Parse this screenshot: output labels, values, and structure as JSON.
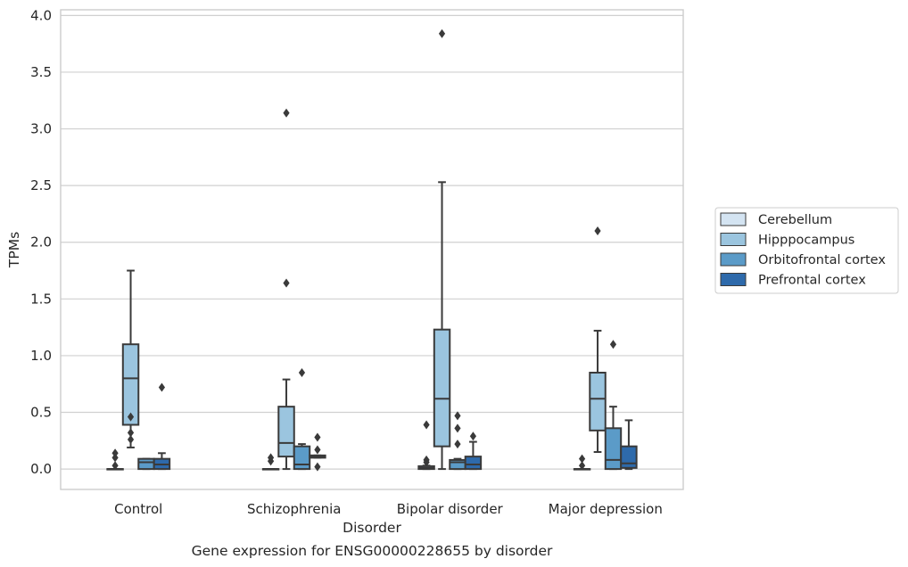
{
  "chart_data": {
    "type": "boxplot",
    "title": "",
    "caption": "Gene expression for ENSG00000228655 by disorder",
    "xlabel": "Disorder",
    "ylabel": "TPMs",
    "ylim": [
      -0.18,
      4.05
    ],
    "yticks": [
      "0.0",
      "0.5",
      "1.0",
      "1.5",
      "2.0",
      "2.5",
      "3.0",
      "3.5",
      "4.0"
    ],
    "ytick_values": [
      0,
      0.5,
      1.0,
      1.5,
      2.0,
      2.5,
      3.0,
      3.5,
      4.0
    ],
    "grid": "horizontal",
    "legend_position": "right",
    "categories": [
      "Control",
      "Schizophrenia",
      "Bipolar disorder",
      "Major depression"
    ],
    "series": [
      {
        "name": "Cerebellum",
        "color": "#d4e4f2",
        "boxes": [
          {
            "whisker_low": 0.0,
            "q1": 0.0,
            "median": 0.0,
            "q3": 0.0,
            "whisker_high": 0.0,
            "outliers": [
              0.03,
              0.1,
              0.14
            ]
          },
          {
            "whisker_low": 0.0,
            "q1": 0.0,
            "median": 0.0,
            "q3": 0.0,
            "whisker_high": 0.0,
            "outliers": [
              0.07,
              0.1
            ]
          },
          {
            "whisker_low": 0.0,
            "q1": 0.0,
            "median": 0.01,
            "q3": 0.025,
            "whisker_high": 0.03,
            "outliers": [
              0.06,
              0.08,
              0.39
            ]
          },
          {
            "whisker_low": 0.0,
            "q1": 0.0,
            "median": 0.0,
            "q3": 0.0,
            "whisker_high": 0.0,
            "outliers": [
              0.03,
              0.09
            ]
          }
        ]
      },
      {
        "name": "Hipppocampus",
        "color": "#9bc5df",
        "boxes": [
          {
            "whisker_low": 0.19,
            "q1": 0.39,
            "median": 0.8,
            "q3": 1.1,
            "whisker_high": 1.75,
            "outliers": [
              0.26,
              0.32,
              0.46
            ]
          },
          {
            "whisker_low": 0.0,
            "q1": 0.11,
            "median": 0.23,
            "q3": 0.55,
            "whisker_high": 0.79,
            "outliers": [
              1.64,
              3.14
            ]
          },
          {
            "whisker_low": 0.0,
            "q1": 0.2,
            "median": 0.62,
            "q3": 1.23,
            "whisker_high": 2.53,
            "outliers": [
              3.84
            ]
          },
          {
            "whisker_low": 0.15,
            "q1": 0.34,
            "median": 0.62,
            "q3": 0.85,
            "whisker_high": 1.22,
            "outliers": [
              2.1
            ]
          }
        ]
      },
      {
        "name": "Orbitofrontal cortex",
        "color": "#5b9bc8",
        "boxes": [
          {
            "whisker_low": 0.0,
            "q1": 0.0,
            "median": 0.06,
            "q3": 0.09,
            "whisker_high": 0.09,
            "outliers": []
          },
          {
            "whisker_low": 0.0,
            "q1": 0.0,
            "median": 0.04,
            "q3": 0.2,
            "whisker_high": 0.22,
            "outliers": [
              0.85
            ]
          },
          {
            "whisker_low": 0.0,
            "q1": 0.0,
            "median": 0.06,
            "q3": 0.08,
            "whisker_high": 0.09,
            "outliers": [
              0.22,
              0.36,
              0.47
            ]
          },
          {
            "whisker_low": 0.0,
            "q1": 0.0,
            "median": 0.08,
            "q3": 0.36,
            "whisker_high": 0.55,
            "outliers": [
              1.1
            ]
          }
        ]
      },
      {
        "name": "Prefrontal cortex",
        "color": "#2e6aab",
        "boxes": [
          {
            "whisker_low": 0.0,
            "q1": 0.0,
            "median": 0.04,
            "q3": 0.09,
            "whisker_high": 0.14,
            "outliers": [
              0.72
            ]
          },
          {
            "whisker_low": 0.1,
            "q1": 0.1,
            "median": 0.11,
            "q3": 0.12,
            "whisker_high": 0.12,
            "outliers": [
              0.02,
              0.17,
              0.28
            ]
          },
          {
            "whisker_low": 0.0,
            "q1": 0.0,
            "median": 0.04,
            "q3": 0.11,
            "whisker_high": 0.24,
            "outliers": [
              0.29
            ]
          },
          {
            "whisker_low": 0.0,
            "q1": 0.01,
            "median": 0.05,
            "q3": 0.2,
            "whisker_high": 0.43,
            "outliers": []
          }
        ]
      }
    ]
  }
}
